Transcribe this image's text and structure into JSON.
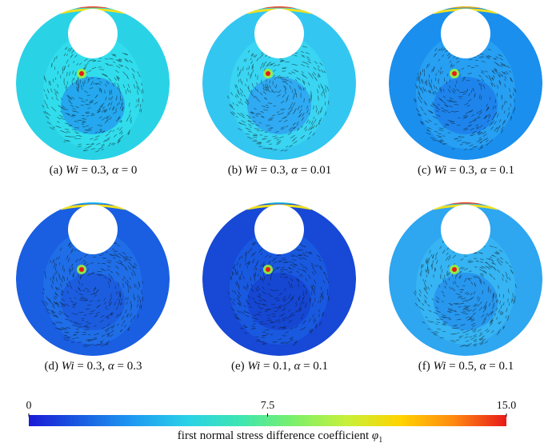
{
  "panels": [
    {
      "id": "a",
      "label": "(a) ",
      "wi_sym": "Wi",
      "wi_val": " = 0.3, ",
      "al_sym": "α",
      "al_val": " = 0",
      "bg": "#2ad2e6",
      "ring": "#33e0ef",
      "top": "#ff3b10",
      "core": "#1b7bf0"
    },
    {
      "id": "b",
      "label": "(b) ",
      "wi_sym": "Wi",
      "wi_val": " = 0.3, ",
      "al_sym": "α",
      "al_val": " = 0.01",
      "bg": "#33c6f0",
      "ring": "#3bd8f2",
      "top": "#ff3b10",
      "core": "#2a86f2"
    },
    {
      "id": "c",
      "label": "(c) ",
      "wi_sym": "Wi",
      "wi_val": " = 0.3, ",
      "al_sym": "α",
      "al_val": " = 0.1",
      "bg": "#1a8fee",
      "ring": "#2aa2f4",
      "top": "#ffb000",
      "core": "#176ee6"
    },
    {
      "id": "d",
      "label": "(d) ",
      "wi_sym": "Wi",
      "wi_val": " = 0.3, ",
      "al_sym": "α",
      "al_val": " = 0.3",
      "bg": "#1a5ee2",
      "ring": "#2070e8",
      "top": "#20c8ff",
      "core": "#1a50d8"
    },
    {
      "id": "e",
      "label": "(e) ",
      "wi_sym": "Wi",
      "wi_val": " = 0.1, ",
      "al_sym": "α",
      "al_val": " = 0.1",
      "bg": "#1748d6",
      "ring": "#1a5ee2",
      "top": "#2ad2e6",
      "core": "#1238c8"
    },
    {
      "id": "f",
      "label": "(f) ",
      "wi_sym": "Wi",
      "wi_val": " = 0.5, ",
      "al_sym": "α",
      "al_val": " = 0.1",
      "bg": "#2ea6f0",
      "ring": "#38b8f4",
      "top": "#ff3b10",
      "core": "#1e80ea"
    }
  ],
  "colorbar": {
    "ticks": [
      "0",
      "7.5",
      "15.0"
    ],
    "tick_values": [
      0,
      7.5,
      15.0
    ],
    "min": 0,
    "max": 15.0,
    "title": "first normal stress difference coefficient ",
    "symbol": "φ",
    "subscript": "1",
    "colors": [
      "#1a1ad6",
      "#1a5ee2",
      "#1f9cf2",
      "#2ad2e6",
      "#3ee6b0",
      "#7cf06a",
      "#c8f03a",
      "#ffd400",
      "#ff8a10",
      "#e81a1a"
    ]
  }
}
